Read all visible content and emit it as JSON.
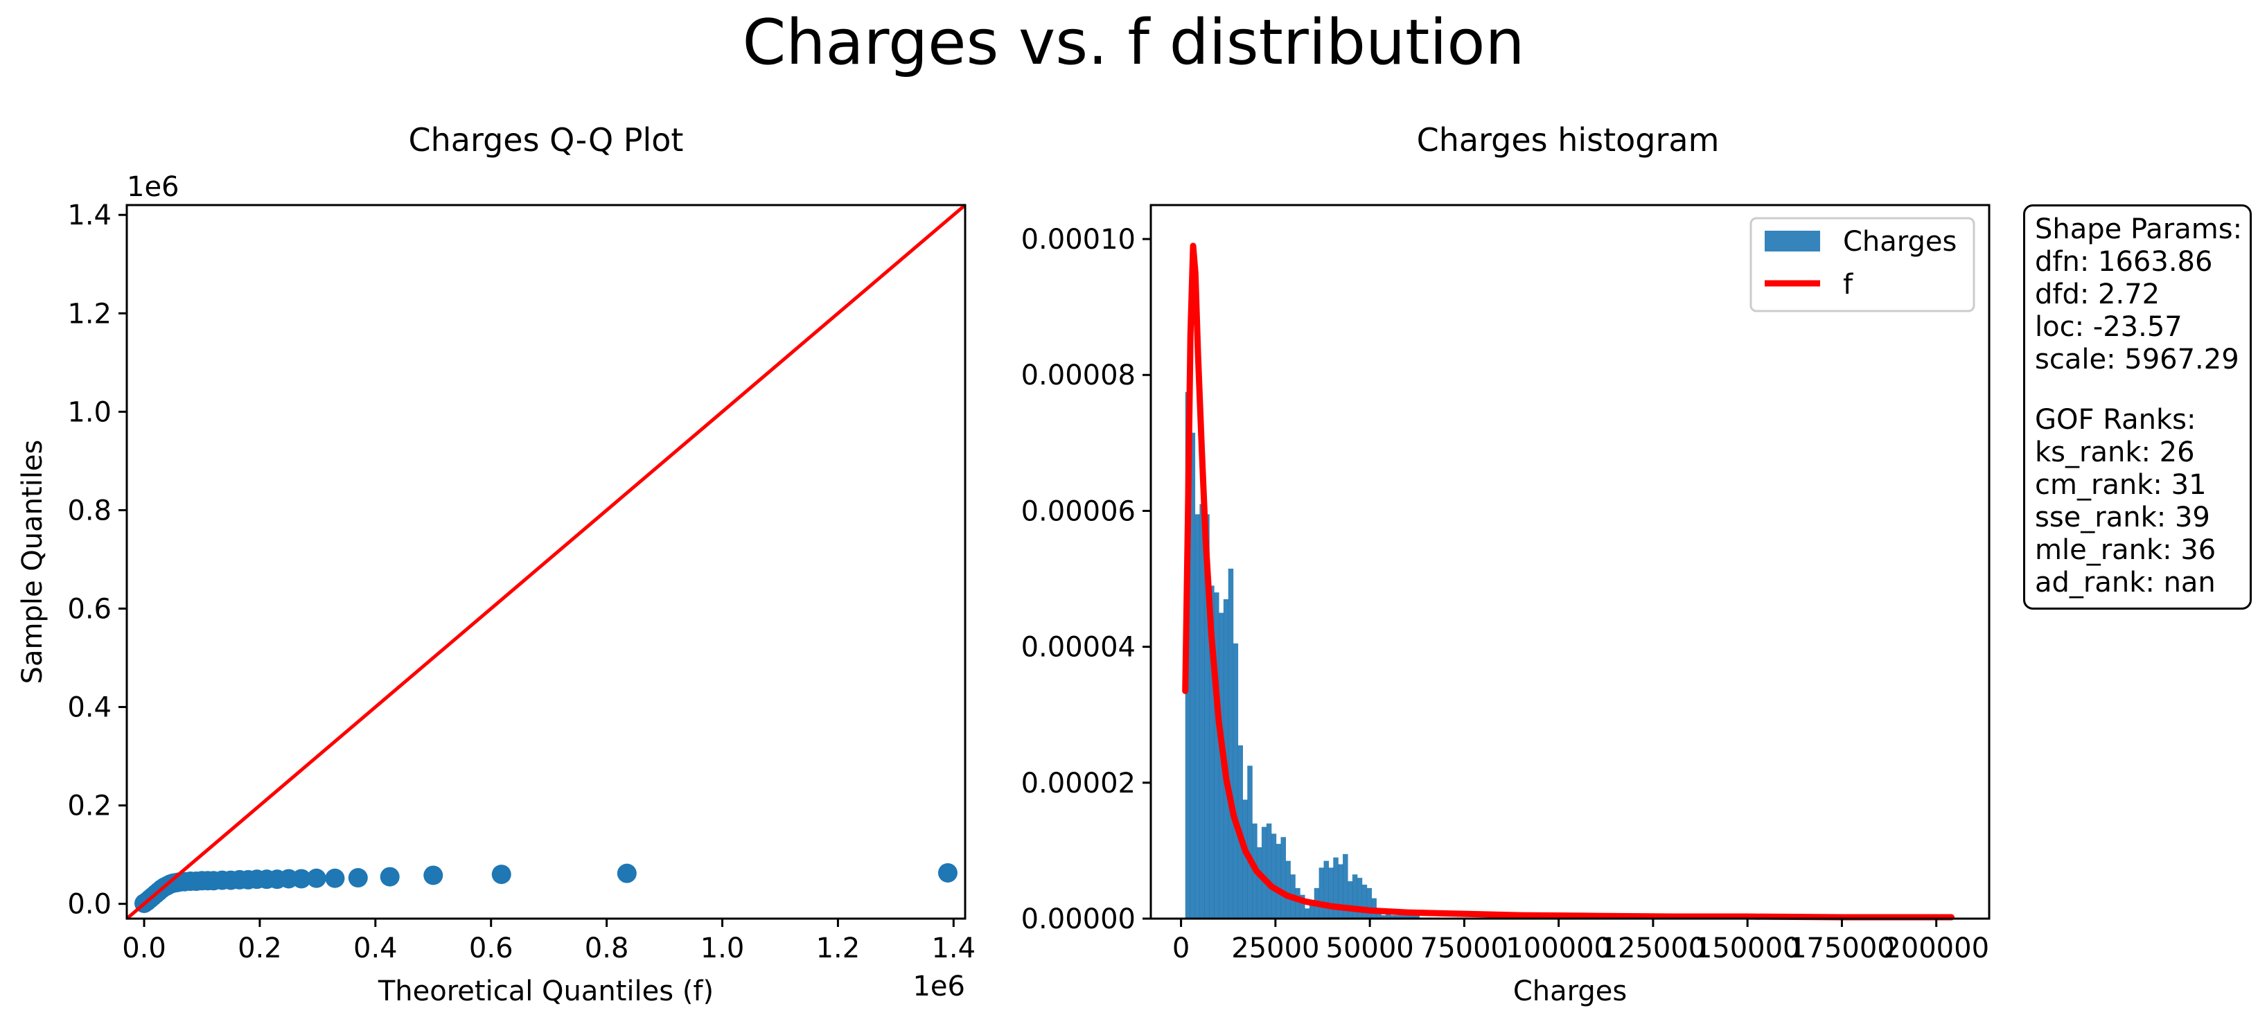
{
  "figure_title": "Charges vs. f distribution",
  "colors": {
    "points": "#1f77b4",
    "bars": "#1f77b4",
    "ref_line": "#ff0000",
    "fit_line": "#ff0000"
  },
  "chart_data": [
    {
      "type": "scatter",
      "title": "Charges Q-Q Plot",
      "xlabel": "Theoretical Quantiles (f)",
      "ylabel": "Sample Quantiles",
      "x_offset_label": "1e6",
      "y_offset_label": "1e6",
      "xlim": [
        -0.03,
        1.42
      ],
      "ylim": [
        -0.03,
        1.42
      ],
      "xticks": [
        0.0,
        0.2,
        0.4,
        0.6,
        0.8,
        1.0,
        1.2,
        1.4
      ],
      "xtick_labels": [
        "0.0",
        "0.2",
        "0.4",
        "0.6",
        "0.8",
        "1.0",
        "1.2",
        "1.4"
      ],
      "yticks": [
        0.0,
        0.2,
        0.4,
        0.6,
        0.8,
        1.0,
        1.2,
        1.4
      ],
      "ytick_labels": [
        "0.0",
        "0.2",
        "0.4",
        "0.6",
        "0.8",
        "1.0",
        "1.2",
        "1.4"
      ],
      "points": [
        {
          "x": 0.0,
          "y": 0.001
        },
        {
          "x": 0.005,
          "y": 0.005
        },
        {
          "x": 0.01,
          "y": 0.01
        },
        {
          "x": 0.015,
          "y": 0.015
        },
        {
          "x": 0.02,
          "y": 0.02
        },
        {
          "x": 0.025,
          "y": 0.025
        },
        {
          "x": 0.03,
          "y": 0.03
        },
        {
          "x": 0.035,
          "y": 0.034
        },
        {
          "x": 0.04,
          "y": 0.037
        },
        {
          "x": 0.045,
          "y": 0.04
        },
        {
          "x": 0.05,
          "y": 0.042
        },
        {
          "x": 0.055,
          "y": 0.043
        },
        {
          "x": 0.06,
          "y": 0.044
        },
        {
          "x": 0.07,
          "y": 0.045
        },
        {
          "x": 0.08,
          "y": 0.046
        },
        {
          "x": 0.09,
          "y": 0.046
        },
        {
          "x": 0.1,
          "y": 0.047
        },
        {
          "x": 0.11,
          "y": 0.047
        },
        {
          "x": 0.12,
          "y": 0.047
        },
        {
          "x": 0.135,
          "y": 0.048
        },
        {
          "x": 0.15,
          "y": 0.048
        },
        {
          "x": 0.165,
          "y": 0.049
        },
        {
          "x": 0.18,
          "y": 0.049
        },
        {
          "x": 0.195,
          "y": 0.05
        },
        {
          "x": 0.212,
          "y": 0.05
        },
        {
          "x": 0.23,
          "y": 0.05
        },
        {
          "x": 0.25,
          "y": 0.051
        },
        {
          "x": 0.272,
          "y": 0.051
        },
        {
          "x": 0.298,
          "y": 0.052
        },
        {
          "x": 0.33,
          "y": 0.052
        },
        {
          "x": 0.37,
          "y": 0.053
        },
        {
          "x": 0.425,
          "y": 0.055
        },
        {
          "x": 0.5,
          "y": 0.058
        },
        {
          "x": 0.618,
          "y": 0.06
        },
        {
          "x": 0.835,
          "y": 0.062
        },
        {
          "x": 1.39,
          "y": 0.063
        }
      ],
      "reference_line": [
        [
          -0.03,
          -0.03
        ],
        [
          1.42,
          1.42
        ]
      ]
    },
    {
      "type": "bar",
      "title": "Charges histogram",
      "xlabel": "Charges",
      "xlim": [
        -8000,
        214000
      ],
      "ylim": [
        0,
        0.000105
      ],
      "xticks": [
        0,
        25000,
        50000,
        75000,
        100000,
        125000,
        150000,
        175000,
        200000
      ],
      "xtick_labels": [
        "0",
        "25000",
        "50000",
        "75000",
        "100000",
        "125000",
        "150000",
        "175000",
        "200000"
      ],
      "yticks": [
        0,
        2e-05,
        4e-05,
        6e-05,
        8e-05,
        0.0001
      ],
      "ytick_labels": [
        "0.00000",
        "0.00002",
        "0.00004",
        "0.00006",
        "0.00008",
        "0.00010"
      ],
      "legend": {
        "placement": "upper right",
        "entries": [
          "Charges",
          "f"
        ]
      },
      "histogram": {
        "start": 1122,
        "bin_width": 1264,
        "densities": [
          7.75e-05,
          7.15e-05,
          5.95e-05,
          6.1e-05,
          5.95e-05,
          4.9e-05,
          4.8e-05,
          4.5e-05,
          4.7e-05,
          5.15e-05,
          4.05e-05,
          2.55e-05,
          1.75e-05,
          2.25e-05,
          1.4e-05,
          1.05e-05,
          1.35e-05,
          1.4e-05,
          1.25e-05,
          1.1e-05,
          1.2e-05,
          8.5e-06,
          6.5e-06,
          4.5e-06,
          3.5e-06,
          1.5e-06,
          2e-06,
          4.5e-06,
          7.5e-06,
          8.5e-06,
          7.5e-06,
          9e-06,
          8e-06,
          9.5e-06,
          5.5e-06,
          6.5e-06,
          6e-06,
          5e-06,
          4.5e-06,
          3e-06,
          1e-06,
          5e-07,
          1e-06,
          5e-07,
          5e-07,
          5e-07,
          5e-07,
          5e-07,
          5e-07
        ]
      },
      "fit_curve": {
        "name": "f",
        "x": [
          1122,
          1800,
          2500,
          3200,
          3800,
          4500,
          5500,
          6500,
          8000,
          10000,
          12000,
          14000,
          17000,
          20000,
          24000,
          28000,
          33000,
          40000,
          50000,
          60000,
          75000,
          90000,
          110000,
          130000,
          150000,
          175000,
          204000
        ],
        "y": [
          3.35e-05,
          5.8e-05,
          8.6e-05,
          9.9e-05,
          9.5e-05,
          8.3e-05,
          6.9e-05,
          5.6e-05,
          4.2e-05,
          2.9e-05,
          2.05e-05,
          1.5e-05,
          1e-05,
          7e-06,
          4.7e-06,
          3.4e-06,
          2.5e-06,
          1.8e-06,
          1.2e-06,
          9e-07,
          7e-07,
          5e-07,
          4e-07,
          3e-07,
          3e-07,
          2e-07,
          2e-07
        ]
      }
    }
  ],
  "params_box": {
    "shape_header": "Shape Params:",
    "shape_lines": [
      "dfn: 1663.86",
      "dfd: 2.72",
      "loc: -23.57",
      "scale: 5967.29"
    ],
    "gof_header": "GOF Ranks:",
    "gof_lines": [
      "ks_rank: 26",
      "cm_rank: 31",
      "sse_rank: 39",
      "mle_rank: 36",
      "ad_rank: nan"
    ]
  }
}
